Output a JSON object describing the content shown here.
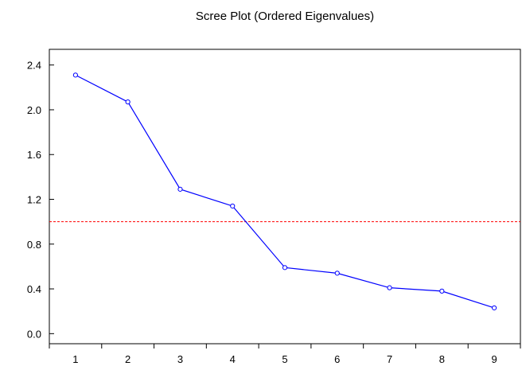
{
  "chart_data": {
    "type": "line",
    "title": "Scree Plot (Ordered Eigenvalues)",
    "xlabel": "",
    "ylabel": "",
    "categories": [
      "1",
      "2",
      "3",
      "4",
      "5",
      "6",
      "7",
      "8",
      "9"
    ],
    "series": [
      {
        "values": [
          2.31,
          2.07,
          1.29,
          1.14,
          0.59,
          0.54,
          0.41,
          0.38,
          0.23
        ],
        "color": "#0000ff"
      }
    ],
    "reference_line": {
      "y": 1.0,
      "color": "#ff0000",
      "style": "dashed"
    },
    "ylim": [
      -0.09,
      2.54
    ],
    "yticks": [
      "0.0",
      "0.4",
      "0.8",
      "1.2",
      "1.6",
      "2.0",
      "2.4"
    ],
    "grid": false,
    "marker": "open-circle"
  }
}
